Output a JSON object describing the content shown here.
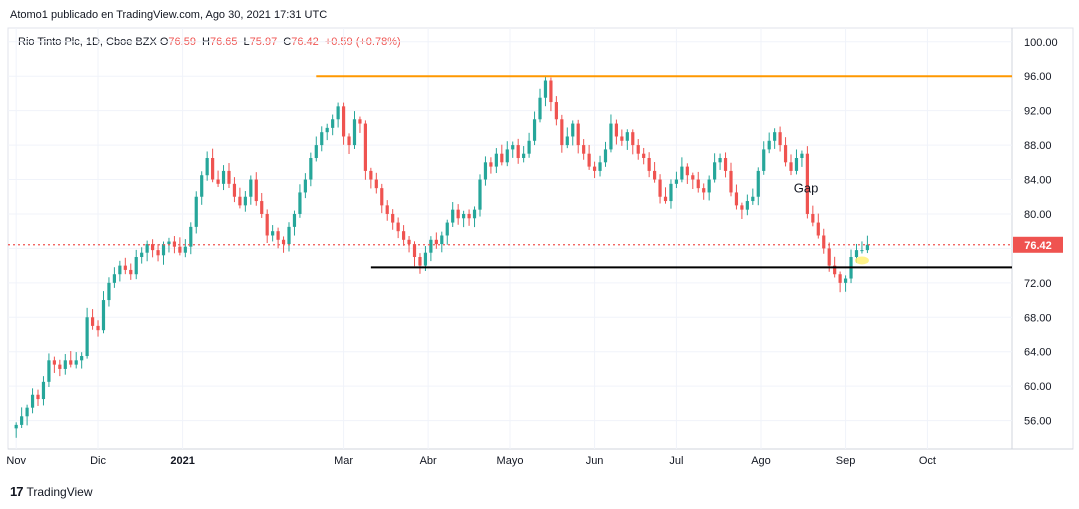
{
  "header": {
    "attribution": "Atomo1 publicado en TradingView.com, Ago 30, 2021 17:31 UTC",
    "symbol": "Rio Tinto Plc, 1D, Cboe BZX",
    "ohlc": [
      {
        "label": "O",
        "value": "76.59"
      },
      {
        "label": "H",
        "value": "76.65"
      },
      {
        "label": "L",
        "value": "75.97"
      },
      {
        "label": "C",
        "value": "76.42"
      },
      {
        "label": "",
        "value": "+0.59 (+0.78%)"
      }
    ]
  },
  "footer": {
    "logo": "17",
    "brand": "TradingView"
  },
  "colors": {
    "up": "#26a69a",
    "down": "#ef5350",
    "resistance": "#ff9800",
    "support": "#000000",
    "grid": "#f0f3fa",
    "priceLine": "#ef5350"
  },
  "chart_data": {
    "type": "candlestick",
    "title": "Rio Tinto Plc, 1D, Cboe BZX",
    "ylim": [
      52.7,
      101.6
    ],
    "y_ticks": [
      {
        "value": 56,
        "label": "56.00"
      },
      {
        "value": 60,
        "label": "60.00"
      },
      {
        "value": 64,
        "label": "64.00"
      },
      {
        "value": 68,
        "label": "68.00"
      },
      {
        "value": 72,
        "label": "72.00"
      },
      {
        "value": 76,
        "label": "76.00"
      },
      {
        "value": 80,
        "label": "80.00"
      },
      {
        "value": 84,
        "label": "84.00"
      },
      {
        "value": 88,
        "label": "88.00"
      },
      {
        "value": 92,
        "label": "92.00"
      },
      {
        "value": 96,
        "label": "96.00"
      },
      {
        "value": 100,
        "label": "100.00"
      }
    ],
    "x_ticks": [
      {
        "day": 0,
        "label": "Nov"
      },
      {
        "day": 30,
        "label": "Dic"
      },
      {
        "day": 61,
        "label": "2021",
        "bold": true
      },
      {
        "day": 120,
        "label": "Mar"
      },
      {
        "day": 151,
        "label": "Abr"
      },
      {
        "day": 181,
        "label": "Mayo"
      },
      {
        "day": 212,
        "label": "Jun"
      },
      {
        "day": 242,
        "label": "Jul"
      },
      {
        "day": 273,
        "label": "Ago"
      },
      {
        "day": 304,
        "label": "Sep"
      },
      {
        "day": 334,
        "label": "Oct"
      }
    ],
    "xlim_days": [
      -3,
      365
    ],
    "last_price": {
      "value": 76.42,
      "label": "76.42"
    },
    "resistance_line": {
      "value": 96.0,
      "from_day": 110,
      "to_day": 365
    },
    "support_line": {
      "value": 73.8,
      "from_day": 130,
      "to_day": 365
    },
    "annotation": {
      "text": "Gap",
      "day": 285,
      "value": 82.5
    },
    "closes": [
      [
        0,
        55.5
      ],
      [
        2,
        56.5
      ],
      [
        4,
        57.5
      ],
      [
        6,
        59.0
      ],
      [
        8,
        58.5
      ],
      [
        10,
        60.5
      ],
      [
        12,
        63.0
      ],
      [
        14,
        62.5
      ],
      [
        16,
        62.0
      ],
      [
        18,
        63.0
      ],
      [
        20,
        62.5
      ],
      [
        22,
        63.0
      ],
      [
        24,
        63.5
      ],
      [
        26,
        68.0
      ],
      [
        28,
        67.0
      ],
      [
        30,
        66.5
      ],
      [
        32,
        70.0
      ],
      [
        34,
        72.0
      ],
      [
        36,
        73.0
      ],
      [
        38,
        74.0
      ],
      [
        40,
        73.5
      ],
      [
        42,
        73.0
      ],
      [
        44,
        75.0
      ],
      [
        46,
        75.5
      ],
      [
        48,
        76.5
      ],
      [
        50,
        75.8
      ],
      [
        52,
        75.2
      ],
      [
        54,
        76.5
      ],
      [
        56,
        76.8
      ],
      [
        58,
        76.2
      ],
      [
        60,
        75.5
      ],
      [
        62,
        76.2
      ],
      [
        64,
        78.5
      ],
      [
        66,
        82.0
      ],
      [
        68,
        84.5
      ],
      [
        70,
        86.5
      ],
      [
        72,
        84.0
      ],
      [
        74,
        83.5
      ],
      [
        76,
        85.0
      ],
      [
        78,
        83.5
      ],
      [
        80,
        82.0
      ],
      [
        82,
        81.0
      ],
      [
        84,
        82.0
      ],
      [
        86,
        84.0
      ],
      [
        88,
        81.5
      ],
      [
        90,
        80.0
      ],
      [
        92,
        77.5
      ],
      [
        94,
        78.0
      ],
      [
        96,
        77.0
      ],
      [
        98,
        76.5
      ],
      [
        100,
        78.5
      ],
      [
        102,
        80.0
      ],
      [
        104,
        82.5
      ],
      [
        106,
        84.0
      ],
      [
        108,
        86.5
      ],
      [
        110,
        88.0
      ],
      [
        112,
        89.5
      ],
      [
        114,
        90.0
      ],
      [
        116,
        91.0
      ],
      [
        118,
        92.5
      ],
      [
        120,
        89.0
      ],
      [
        122,
        88.0
      ],
      [
        124,
        91.0
      ],
      [
        126,
        90.5
      ],
      [
        128,
        85.0
      ],
      [
        130,
        84.0
      ],
      [
        132,
        83.0
      ],
      [
        134,
        81.0
      ],
      [
        136,
        80.0
      ],
      [
        138,
        79.0
      ],
      [
        140,
        78.0
      ],
      [
        142,
        77.0
      ],
      [
        144,
        76.5
      ],
      [
        146,
        75.0
      ],
      [
        148,
        74.0
      ],
      [
        150,
        75.5
      ],
      [
        152,
        77.0
      ],
      [
        154,
        76.5
      ],
      [
        156,
        77.5
      ],
      [
        158,
        79.0
      ],
      [
        160,
        80.5
      ],
      [
        162,
        79.5
      ],
      [
        164,
        80.0
      ],
      [
        166,
        79.5
      ],
      [
        168,
        80.5
      ],
      [
        170,
        84.0
      ],
      [
        172,
        86.0
      ],
      [
        174,
        85.5
      ],
      [
        176,
        87.0
      ],
      [
        178,
        86.0
      ],
      [
        180,
        87.5
      ],
      [
        182,
        88.0
      ],
      [
        184,
        86.5
      ],
      [
        186,
        87.0
      ],
      [
        188,
        88.5
      ],
      [
        190,
        91.0
      ],
      [
        192,
        93.5
      ],
      [
        194,
        95.5
      ],
      [
        196,
        93.0
      ],
      [
        198,
        91.0
      ],
      [
        200,
        88.0
      ],
      [
        202,
        89.0
      ],
      [
        204,
        90.5
      ],
      [
        206,
        88.0
      ],
      [
        208,
        87.0
      ],
      [
        210,
        85.5
      ],
      [
        212,
        85.0
      ],
      [
        214,
        86.0
      ],
      [
        216,
        87.5
      ],
      [
        218,
        90.5
      ],
      [
        220,
        89.0
      ],
      [
        222,
        88.5
      ],
      [
        224,
        89.5
      ],
      [
        226,
        88.0
      ],
      [
        228,
        87.0
      ],
      [
        230,
        86.5
      ],
      [
        232,
        85.0
      ],
      [
        234,
        84.0
      ],
      [
        236,
        82.0
      ],
      [
        238,
        81.5
      ],
      [
        240,
        83.5
      ],
      [
        242,
        84.0
      ],
      [
        244,
        85.5
      ],
      [
        246,
        84.5
      ],
      [
        248,
        84.0
      ],
      [
        250,
        83.0
      ],
      [
        252,
        82.5
      ],
      [
        254,
        84.0
      ],
      [
        256,
        86.0
      ],
      [
        258,
        86.5
      ],
      [
        260,
        85.0
      ],
      [
        262,
        82.5
      ],
      [
        264,
        81.0
      ],
      [
        266,
        80.5
      ],
      [
        268,
        81.5
      ],
      [
        270,
        82.0
      ],
      [
        272,
        85.0
      ],
      [
        274,
        87.5
      ],
      [
        276,
        88.5
      ],
      [
        278,
        89.5
      ],
      [
        280,
        88.0
      ],
      [
        282,
        86.0
      ],
      [
        284,
        85.0
      ],
      [
        286,
        86.5
      ],
      [
        288,
        87.0
      ],
      [
        290,
        80.0
      ],
      [
        292,
        79.0
      ],
      [
        294,
        77.5
      ],
      [
        296,
        76.0
      ],
      [
        298,
        74.0
      ],
      [
        300,
        73.0
      ],
      [
        302,
        72.0
      ],
      [
        304,
        72.5
      ],
      [
        306,
        75.0
      ],
      [
        308,
        75.8
      ],
      [
        310,
        75.8
      ],
      [
        312,
        76.42
      ]
    ]
  }
}
